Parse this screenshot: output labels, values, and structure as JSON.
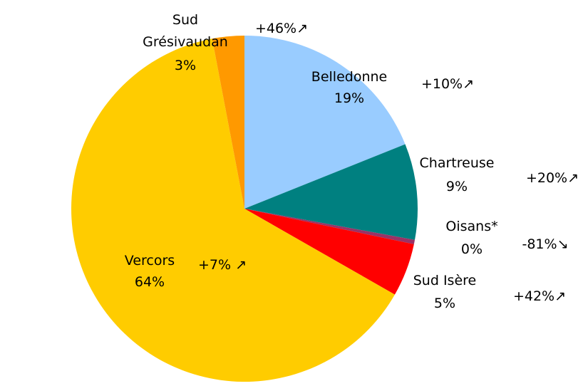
{
  "chart_data": {
    "type": "pie",
    "categories": [
      "Belledonne",
      "Chartreuse",
      "Oisans*",
      "Sud Isère",
      "Vercors",
      "Sud Grésivaudan"
    ],
    "values": [
      19,
      9,
      0.4,
      5,
      64,
      3
    ],
    "value_labels": [
      "19%",
      "9%",
      "0%",
      "5%",
      "64%",
      "3%"
    ],
    "colors": [
      "#99ccff",
      "#008080",
      "#993366",
      "#ff0000",
      "#ffcc00",
      "#ff9900"
    ],
    "changes": [
      "+10%↗",
      "+20%↗",
      "-81%↘",
      "+42%↗",
      "+7% ↗",
      "+46%↗"
    ]
  }
}
